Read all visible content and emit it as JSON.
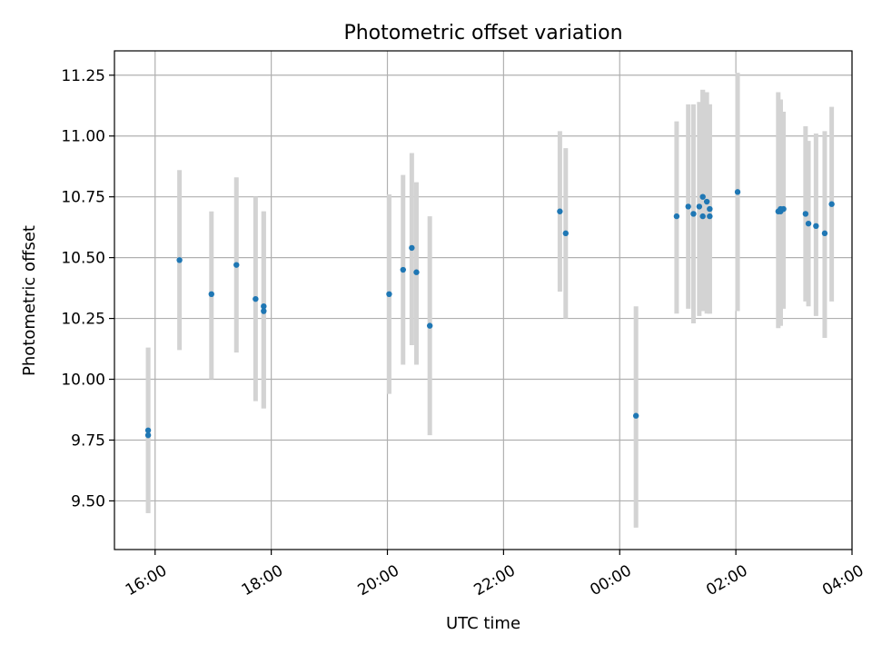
{
  "chart_data": {
    "type": "scatter",
    "title": "Photometric offset variation",
    "xlabel": "UTC time",
    "ylabel": "Photometric offset",
    "grid": true,
    "xlim": [
      15.3,
      28.0
    ],
    "ylim": [
      9.3,
      11.35
    ],
    "x_ticks": [
      {
        "value": 16,
        "label": "16:00"
      },
      {
        "value": 18,
        "label": "18:00"
      },
      {
        "value": 20,
        "label": "20:00"
      },
      {
        "value": 22,
        "label": "22:00"
      },
      {
        "value": 24,
        "label": "00:00"
      },
      {
        "value": 26,
        "label": "02:00"
      },
      {
        "value": 28,
        "label": "04:00"
      }
    ],
    "y_ticks": [
      {
        "value": 9.5,
        "label": "9.50"
      },
      {
        "value": 9.75,
        "label": "9.75"
      },
      {
        "value": 10.0,
        "label": "10.00"
      },
      {
        "value": 10.25,
        "label": "10.25"
      },
      {
        "value": 10.5,
        "label": "10.50"
      },
      {
        "value": 10.75,
        "label": "10.75"
      },
      {
        "value": 11.0,
        "label": "11.00"
      },
      {
        "value": 11.25,
        "label": "11.25"
      }
    ],
    "series": [
      {
        "name": "Photometric offset",
        "marker_color": "#1f77b4",
        "errorbar_color": "#d3d3d3",
        "points": [
          {
            "x": 15.88,
            "y": 9.79,
            "ylow": 9.45,
            "yhigh": 10.13
          },
          {
            "x": 15.88,
            "y": 9.77,
            "ylow": 9.45,
            "yhigh": 10.13
          },
          {
            "x": 16.42,
            "y": 10.49,
            "ylow": 10.12,
            "yhigh": 10.86
          },
          {
            "x": 16.97,
            "y": 10.35,
            "ylow": 10.0,
            "yhigh": 10.69
          },
          {
            "x": 17.4,
            "y": 10.47,
            "ylow": 10.11,
            "yhigh": 10.83
          },
          {
            "x": 17.73,
            "y": 10.33,
            "ylow": 9.91,
            "yhigh": 10.75
          },
          {
            "x": 17.87,
            "y": 10.3,
            "ylow": 9.88,
            "yhigh": 10.69
          },
          {
            "x": 17.87,
            "y": 10.28,
            "ylow": 9.88,
            "yhigh": 10.69
          },
          {
            "x": 20.03,
            "y": 10.35,
            "ylow": 9.94,
            "yhigh": 10.76
          },
          {
            "x": 20.27,
            "y": 10.45,
            "ylow": 10.06,
            "yhigh": 10.84
          },
          {
            "x": 20.42,
            "y": 10.54,
            "ylow": 10.14,
            "yhigh": 10.93
          },
          {
            "x": 20.5,
            "y": 10.44,
            "ylow": 10.06,
            "yhigh": 10.81
          },
          {
            "x": 20.73,
            "y": 10.22,
            "ylow": 9.77,
            "yhigh": 10.67
          },
          {
            "x": 22.97,
            "y": 10.69,
            "ylow": 10.36,
            "yhigh": 11.02
          },
          {
            "x": 23.07,
            "y": 10.6,
            "ylow": 10.25,
            "yhigh": 10.95
          },
          {
            "x": 24.28,
            "y": 9.85,
            "ylow": 9.39,
            "yhigh": 10.3
          },
          {
            "x": 24.98,
            "y": 10.67,
            "ylow": 10.27,
            "yhigh": 11.06
          },
          {
            "x": 25.18,
            "y": 10.71,
            "ylow": 10.29,
            "yhigh": 11.13
          },
          {
            "x": 25.27,
            "y": 10.68,
            "ylow": 10.23,
            "yhigh": 11.13
          },
          {
            "x": 25.37,
            "y": 10.71,
            "ylow": 10.26,
            "yhigh": 11.14
          },
          {
            "x": 25.43,
            "y": 10.75,
            "ylow": 10.31,
            "yhigh": 11.19
          },
          {
            "x": 25.43,
            "y": 10.67,
            "ylow": 10.28,
            "yhigh": 11.19
          },
          {
            "x": 25.5,
            "y": 10.73,
            "ylow": 10.27,
            "yhigh": 11.18
          },
          {
            "x": 25.55,
            "y": 10.7,
            "ylow": 10.27,
            "yhigh": 11.13
          },
          {
            "x": 25.55,
            "y": 10.67,
            "ylow": 10.27,
            "yhigh": 11.13
          },
          {
            "x": 26.03,
            "y": 10.77,
            "ylow": 10.28,
            "yhigh": 11.26
          },
          {
            "x": 26.73,
            "y": 10.69,
            "ylow": 10.21,
            "yhigh": 11.18
          },
          {
            "x": 26.77,
            "y": 10.69,
            "ylow": 10.22,
            "yhigh": 11.15
          },
          {
            "x": 26.77,
            "y": 10.7,
            "ylow": 10.22,
            "yhigh": 11.15
          },
          {
            "x": 26.82,
            "y": 10.7,
            "ylow": 10.29,
            "yhigh": 11.1
          },
          {
            "x": 27.2,
            "y": 10.68,
            "ylow": 10.32,
            "yhigh": 11.04
          },
          {
            "x": 27.25,
            "y": 10.64,
            "ylow": 10.3,
            "yhigh": 10.98
          },
          {
            "x": 27.38,
            "y": 10.63,
            "ylow": 10.26,
            "yhigh": 11.01
          },
          {
            "x": 27.53,
            "y": 10.6,
            "ylow": 10.17,
            "yhigh": 11.02
          },
          {
            "x": 27.65,
            "y": 10.72,
            "ylow": 10.32,
            "yhigh": 11.12
          }
        ]
      }
    ]
  }
}
